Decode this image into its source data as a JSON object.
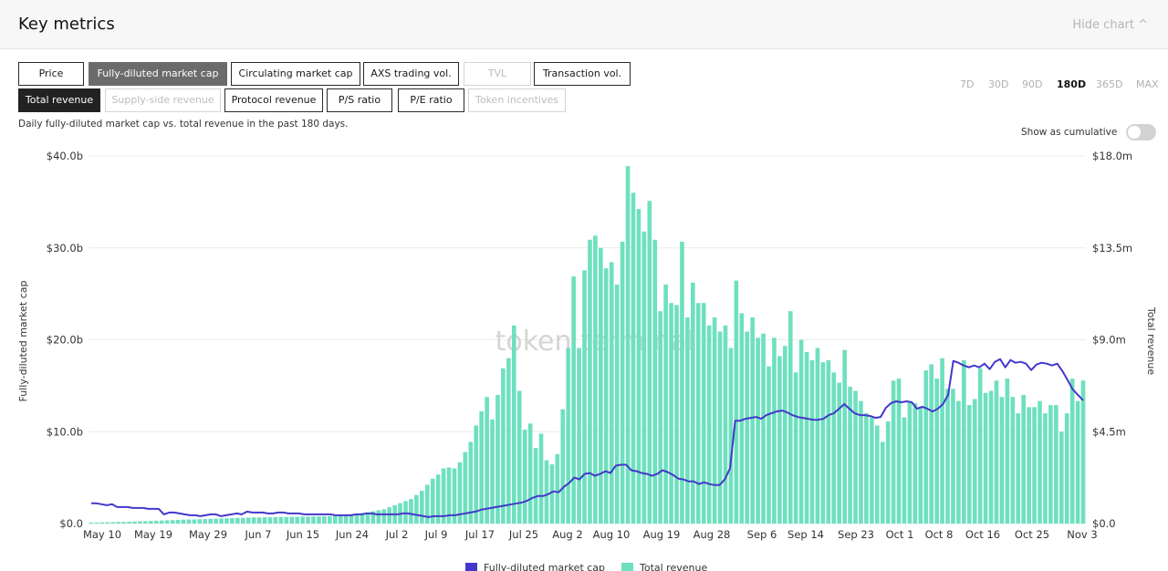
{
  "header": {
    "title": "Key metrics",
    "hide_label": "Hide chart ^"
  },
  "metrics_row1": [
    {
      "label": "Price",
      "state": "normal"
    },
    {
      "label": "Fully-diluted market cap",
      "state": "active-grey"
    },
    {
      "label": "Circulating market cap",
      "state": "normal"
    },
    {
      "label": "AXS trading vol.",
      "state": "normal"
    },
    {
      "label": "TVL",
      "state": "disabled"
    },
    {
      "label": "Transaction vol.",
      "state": "normal"
    }
  ],
  "metrics_row2": [
    {
      "label": "Total revenue",
      "state": "active"
    },
    {
      "label": "Supply-side revenue",
      "state": "disabled"
    },
    {
      "label": "Protocol revenue",
      "state": "normal"
    },
    {
      "label": "P/S ratio",
      "state": "normal"
    },
    {
      "label": "P/E ratio",
      "state": "normal"
    },
    {
      "label": "Token incentives",
      "state": "disabled"
    }
  ],
  "ranges": [
    {
      "label": "7D",
      "active": false
    },
    {
      "label": "30D",
      "active": false
    },
    {
      "label": "90D",
      "active": false
    },
    {
      "label": "180D",
      "active": true
    },
    {
      "label": "365D",
      "active": false
    },
    {
      "label": "MAX",
      "active": false
    }
  ],
  "description": "Daily fully-diluted market cap vs. total revenue in the past 180 days.",
  "cumulative_label": "Show as cumulative",
  "watermark": "token terminal",
  "colors": {
    "line": "#4338ca",
    "bar": "#6ee0bf"
  },
  "chart_data": {
    "type": "bar+line",
    "title": "",
    "ylabel_left": "Fully-diluted market cap",
    "ylabel_right": "Total revenue",
    "left_ticks": [
      "$0.0",
      "$10.0b",
      "$20.0b",
      "$30.0b",
      "$40.0b"
    ],
    "left_range": [
      0,
      40
    ],
    "right_ticks": [
      "$0.0",
      "$4.5m",
      "$9.0m",
      "$13.5m",
      "$18.0m"
    ],
    "right_range": [
      0,
      18
    ],
    "x_labels": [
      "May 10",
      "May 19",
      "May 29",
      "Jun 7",
      "Jun 15",
      "Jun 24",
      "Jul 2",
      "Jul 9",
      "Jul 17",
      "Jul 25",
      "Aug 2",
      "Aug 10",
      "Aug 19",
      "Aug 28",
      "Sep 6",
      "Sep 14",
      "Sep 23",
      "Oct 1",
      "Oct 8",
      "Oct 16",
      "Oct 25",
      "Nov 3"
    ],
    "legend": [
      "Fully-diluted market cap",
      "Total revenue"
    ],
    "series": [
      {
        "name": "Total revenue",
        "kind": "bar",
        "axis": "right",
        "unit": "$m",
        "values": [
          0.05,
          0.05,
          0.06,
          0.06,
          0.07,
          0.08,
          0.08,
          0.09,
          0.1,
          0.11,
          0.12,
          0.13,
          0.14,
          0.15,
          0.16,
          0.17,
          0.18,
          0.19,
          0.2,
          0.2,
          0.21,
          0.22,
          0.23,
          0.24,
          0.25,
          0.26,
          0.27,
          0.28,
          0.28,
          0.29,
          0.3,
          0.3,
          0.31,
          0.31,
          0.32,
          0.32,
          0.32,
          0.33,
          0.33,
          0.34,
          0.34,
          0.35,
          0.35,
          0.36,
          0.36,
          0.37,
          0.38,
          0.4,
          0.42,
          0.45,
          0.5,
          0.55,
          0.6,
          0.65,
          0.7,
          0.8,
          0.9,
          1.0,
          1.1,
          1.2,
          1.4,
          1.6,
          1.9,
          2.2,
          2.4,
          2.7,
          2.75,
          2.7,
          3.0,
          3.5,
          4.0,
          4.8,
          5.5,
          6.2,
          5.1,
          6.3,
          7.6,
          8.1,
          9.7,
          6.5,
          4.6,
          4.9,
          3.7,
          4.4,
          3.1,
          2.9,
          3.4,
          5.6,
          8.6,
          12.1,
          8.6,
          12.4,
          13.9,
          14.1,
          13.5,
          12.5,
          12.8,
          11.7,
          13.8,
          17.5,
          16.2,
          15.4,
          14.3,
          15.8,
          13.9,
          10.4,
          11.7,
          10.8,
          10.7,
          13.8,
          10.1,
          11.8,
          10.8,
          10.8,
          9.7,
          10.1,
          9.4,
          9.7,
          8.6,
          11.9,
          10.3,
          9.4,
          10.1,
          9.1,
          9.3,
          7.7,
          9.1,
          8.2,
          8.7,
          10.4,
          7.4,
          9.0,
          8.4,
          8.0,
          8.6,
          7.9,
          8.0,
          7.4,
          6.9,
          8.5,
          6.7,
          6.5,
          6.0,
          5.4,
          5.2,
          4.8,
          4.0,
          5.0,
          7.0,
          7.1,
          5.2,
          6.0,
          5.9,
          5.7,
          7.5,
          7.8,
          7.1,
          8.1,
          6.6,
          6.6,
          6.0,
          8.0,
          5.8,
          6.1,
          7.6,
          6.4,
          6.5,
          7.0,
          6.2,
          7.1,
          6.2,
          5.4,
          6.3,
          5.7,
          5.7,
          6.0,
          5.4,
          5.8,
          5.8,
          4.5,
          5.4,
          7.1,
          6.0,
          7.0
        ],
        "y_axis_note": "right axis"
      },
      {
        "name": "Fully-diluted market cap",
        "kind": "line",
        "axis": "left",
        "unit": "$b",
        "values": [
          2.2,
          2.2,
          2.1,
          2.0,
          2.1,
          1.8,
          1.8,
          1.8,
          1.7,
          1.7,
          1.7,
          1.6,
          1.6,
          1.6,
          1.0,
          1.2,
          1.2,
          1.1,
          1.0,
          0.9,
          0.9,
          0.8,
          0.9,
          1.0,
          1.0,
          0.8,
          0.9,
          1.0,
          1.1,
          1.0,
          1.3,
          1.2,
          1.2,
          1.2,
          1.1,
          1.1,
          1.2,
          1.2,
          1.1,
          1.1,
          1.1,
          1.0,
          1.0,
          1.0,
          1.0,
          1.0,
          1.0,
          0.9,
          0.9,
          0.9,
          0.9,
          1.0,
          1.0,
          1.1,
          1.1,
          1.0,
          1.0,
          1.0,
          1.0,
          1.0,
          1.1,
          1.1,
          1.0,
          0.9,
          0.8,
          0.7,
          0.8,
          0.8,
          0.8,
          0.9,
          0.9,
          1.0,
          1.1,
          1.2,
          1.3,
          1.5,
          1.6,
          1.7,
          1.8,
          1.9,
          2.0,
          2.1,
          2.2,
          2.3,
          2.5,
          2.8,
          3.0,
          3.0,
          3.2,
          3.5,
          3.4,
          4.0,
          4.4,
          5.0,
          4.8,
          5.4,
          5.5,
          5.2,
          5.4,
          5.7,
          5.5,
          6.3,
          6.4,
          6.4,
          5.8,
          5.7,
          5.5,
          5.4,
          5.2,
          5.4,
          5.8,
          5.6,
          5.3,
          4.9,
          4.8,
          4.6,
          4.6,
          4.3,
          4.5,
          4.3,
          4.2,
          4.2,
          4.8,
          6.0,
          11.2,
          11.2,
          11.4,
          11.5,
          11.6,
          11.4,
          11.8,
          12.0,
          12.2,
          12.3,
          12.1,
          11.8,
          11.6,
          11.5,
          11.4,
          11.3,
          11.3,
          11.4,
          11.8,
          12.0,
          12.5,
          13.0,
          12.5,
          12.0,
          11.8,
          11.8,
          11.7,
          11.5,
          11.6,
          12.6,
          13.1,
          13.3,
          13.2,
          13.3,
          13.2,
          12.5,
          12.7,
          12.5,
          12.2,
          12.5,
          13.0,
          14.0,
          17.7,
          17.5,
          17.2,
          17.0,
          17.2,
          17.0,
          17.4,
          16.8,
          17.6,
          17.9,
          17.0,
          17.8,
          17.5,
          17.6,
          17.4,
          16.7,
          17.3,
          17.5,
          17.4,
          17.2,
          17.4,
          16.6,
          15.6,
          14.6,
          14.0,
          13.4
        ],
        "y_axis_note": "left axis"
      }
    ]
  }
}
